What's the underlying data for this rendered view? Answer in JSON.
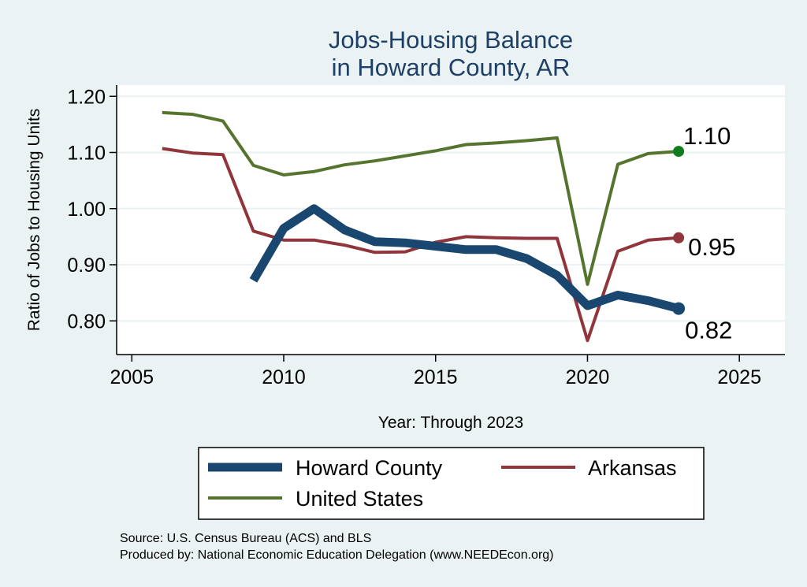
{
  "chart_data": {
    "type": "line",
    "title": [
      "Jobs-Housing Balance",
      "in Howard County, AR"
    ],
    "xlabel": "Year: Through 2023",
    "ylabel": "Ratio of Jobs to Housing Units",
    "xlim": [
      2004.5,
      2026.5
    ],
    "ylim": [
      0.74,
      1.22
    ],
    "x_ticks": [
      2005,
      2010,
      2015,
      2020,
      2025
    ],
    "y_ticks": [
      0.8,
      0.9,
      1.0,
      1.1,
      1.2
    ],
    "y_tick_labels": [
      "0.80",
      "0.90",
      "1.00",
      "1.10",
      "1.20"
    ],
    "grid": true,
    "legend_position": "bottom",
    "series": [
      {
        "name": "Howard County",
        "color": "#1a476f",
        "x": [
          2009,
          2010,
          2011,
          2012,
          2013,
          2014,
          2015,
          2016,
          2017,
          2018,
          2019,
          2020,
          2021,
          2022,
          2023
        ],
        "y": [
          0.872,
          0.965,
          1.0,
          0.962,
          0.941,
          0.939,
          0.933,
          0.927,
          0.927,
          0.911,
          0.881,
          0.827,
          0.846,
          0.836,
          0.822
        ],
        "end_label": "0.82"
      },
      {
        "name": "Arkansas",
        "color": "#90353b",
        "x": [
          2006,
          2007,
          2008,
          2009,
          2010,
          2011,
          2012,
          2013,
          2014,
          2015,
          2016,
          2017,
          2018,
          2019,
          2020,
          2021,
          2022,
          2023
        ],
        "y": [
          1.107,
          1.099,
          1.096,
          0.96,
          0.944,
          0.944,
          0.935,
          0.922,
          0.923,
          0.94,
          0.95,
          0.948,
          0.947,
          0.947,
          0.765,
          0.924,
          0.944,
          0.948
        ],
        "end_label": "0.95"
      },
      {
        "name": "United States",
        "color": "#55752f",
        "marker_color": "#0f7c1d",
        "x": [
          2006,
          2007,
          2008,
          2009,
          2010,
          2011,
          2012,
          2013,
          2014,
          2015,
          2016,
          2017,
          2018,
          2019,
          2020,
          2021,
          2022,
          2023
        ],
        "y": [
          1.171,
          1.168,
          1.156,
          1.077,
          1.06,
          1.066,
          1.078,
          1.085,
          1.094,
          1.103,
          1.114,
          1.117,
          1.121,
          1.126,
          0.865,
          1.079,
          1.098,
          1.102
        ],
        "end_label": "1.10"
      }
    ],
    "source_lines": [
      "Source: U.S. Census Bureau (ACS) and BLS",
      "Produced by: National Economic Education Delegation (www.NEEDEcon.org)"
    ]
  }
}
